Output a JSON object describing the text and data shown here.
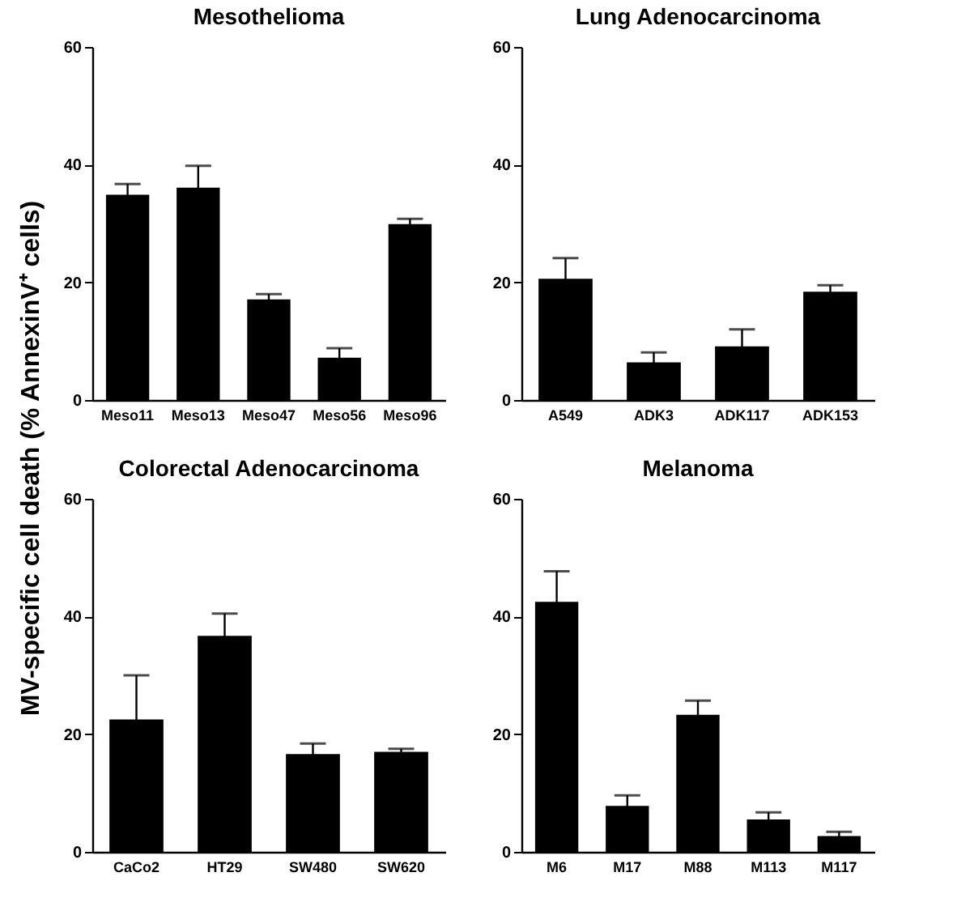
{
  "chart_data": [
    {
      "type": "bar",
      "title": "Mesothelioma",
      "ylabel": "MV-specific cell death (% AnnexinV⁺ cells)",
      "categories": [
        "Meso11",
        "Meso13",
        "Meso47",
        "Meso56",
        "Meso96"
      ],
      "values": [
        34.9,
        36.1,
        17.1,
        7.2,
        29.9
      ],
      "errors": [
        1.8,
        3.7,
        0.9,
        1.6,
        0.9
      ],
      "color": "#000000",
      "ylim": [
        0,
        60
      ],
      "yticks": [
        0,
        20,
        40,
        60
      ]
    },
    {
      "type": "bar",
      "title": "Lung Adenocarcinoma",
      "categories": [
        "A549",
        "ADK3",
        "ADK117",
        "ADK153"
      ],
      "values": [
        20.6,
        6.4,
        9.1,
        18.4
      ],
      "errors": [
        3.5,
        1.7,
        2.9,
        1.1
      ],
      "color": "#000000",
      "ylim": [
        0,
        60
      ],
      "yticks": [
        0,
        20,
        40,
        60
      ]
    },
    {
      "type": "bar",
      "title": "Colorectal Adenocarcinoma",
      "categories": [
        "CaCo2",
        "HT29",
        "SW480",
        "SW620"
      ],
      "values": [
        22.5,
        36.7,
        16.6,
        17.0
      ],
      "errors": [
        7.5,
        3.8,
        1.8,
        0.5
      ],
      "color": "#000000",
      "ylim": [
        0,
        60
      ],
      "yticks": [
        0,
        20,
        40,
        60
      ]
    },
    {
      "type": "bar",
      "title": "Melanoma",
      "categories": [
        "M6",
        "M17",
        "M88",
        "M113",
        "M117"
      ],
      "values": [
        42.5,
        7.8,
        23.3,
        5.5,
        2.7
      ],
      "errors": [
        5.2,
        1.8,
        2.4,
        1.2,
        0.7
      ],
      "color": "#000000",
      "ylim": [
        0,
        60
      ],
      "yticks": [
        0,
        20,
        40,
        60
      ]
    }
  ]
}
